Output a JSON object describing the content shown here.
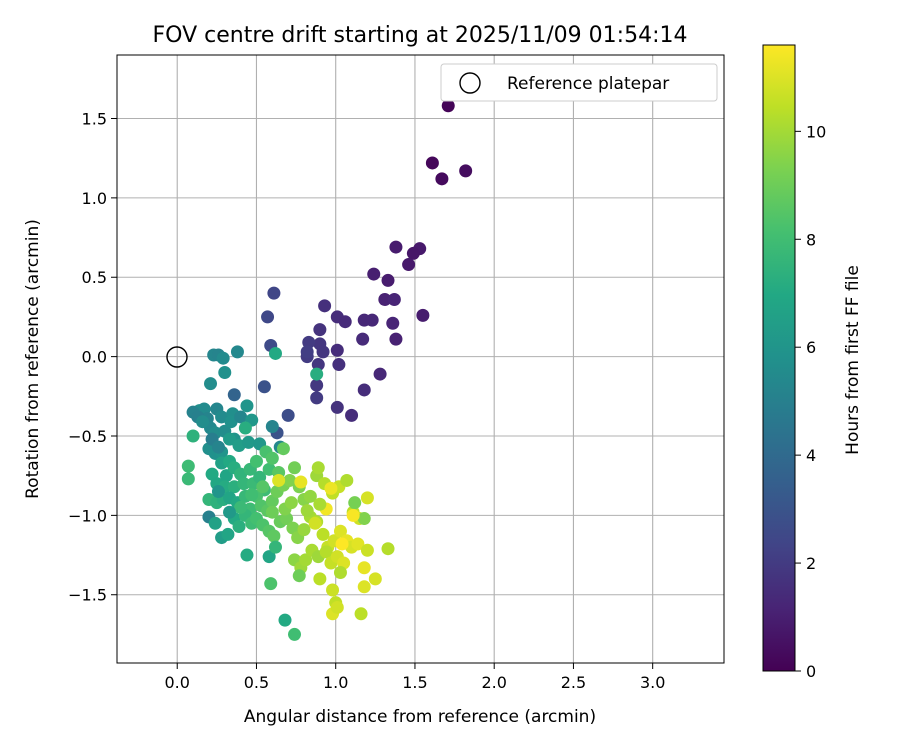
{
  "chart_data": {
    "type": "scatter",
    "title": "FOV centre drift starting at 2025/11/09 01:54:14",
    "xlabel": "Angular distance from reference (arcmin)",
    "ylabel": "Rotation from reference (arcmin)",
    "xlim": [
      -0.38,
      3.45
    ],
    "ylim": [
      -1.93,
      1.9
    ],
    "xticks": [
      0.0,
      0.5,
      1.0,
      1.5,
      2.0,
      2.5,
      3.0
    ],
    "xtick_labels": [
      "0.0",
      "0.5",
      "1.0",
      "1.5",
      "2.0",
      "2.5",
      "3.0"
    ],
    "yticks": [
      -1.5,
      -1.0,
      -0.5,
      0.0,
      0.5,
      1.0,
      1.5
    ],
    "ytick_labels": [
      "−1.5",
      "−1.0",
      "−0.5",
      "0.0",
      "0.5",
      "1.0",
      "1.5"
    ],
    "grid": true,
    "legend": {
      "placement": "top-right",
      "entries": [
        "Reference platepar"
      ]
    },
    "reference_point": [
      0.0,
      0.0
    ],
    "colorbar": {
      "label": "Hours from first FF file",
      "colormap": "viridis",
      "range": [
        0,
        11.6
      ],
      "ticks": [
        0,
        2,
        4,
        6,
        8,
        10
      ],
      "tick_labels": [
        "0",
        "2",
        "4",
        "6",
        "8",
        "10"
      ]
    },
    "points": [
      [
        1.71,
        1.58,
        0.1
      ],
      [
        1.61,
        1.22,
        0.2
      ],
      [
        1.67,
        1.12,
        0.3
      ],
      [
        1.82,
        1.17,
        0.4
      ],
      [
        1.38,
        0.69,
        0.9
      ],
      [
        1.53,
        0.68,
        0.8
      ],
      [
        1.49,
        0.65,
        0.7
      ],
      [
        1.46,
        0.58,
        0.8
      ],
      [
        1.24,
        0.52,
        1.0
      ],
      [
        1.33,
        0.48,
        0.9
      ],
      [
        1.31,
        0.36,
        1.1
      ],
      [
        1.37,
        0.36,
        1.2
      ],
      [
        1.55,
        0.26,
        0.9
      ],
      [
        1.36,
        0.21,
        1.2
      ],
      [
        1.18,
        0.23,
        1.3
      ],
      [
        1.23,
        0.23,
        1.3
      ],
      [
        1.01,
        0.25,
        1.5
      ],
      [
        1.06,
        0.22,
        1.4
      ],
      [
        0.93,
        0.32,
        1.6
      ],
      [
        1.38,
        0.11,
        1.1
      ],
      [
        1.17,
        0.11,
        1.4
      ],
      [
        0.9,
        0.17,
        1.7
      ],
      [
        0.9,
        0.08,
        1.8
      ],
      [
        0.83,
        0.09,
        2.0
      ],
      [
        0.82,
        0.0,
        2.0
      ],
      [
        0.92,
        0.03,
        1.8
      ],
      [
        1.01,
        0.04,
        1.5
      ],
      [
        0.82,
        0.03,
        2.1
      ],
      [
        0.89,
        -0.05,
        1.8
      ],
      [
        1.02,
        -0.05,
        1.6
      ],
      [
        1.28,
        -0.11,
        1.3
      ],
      [
        1.18,
        -0.21,
        1.5
      ],
      [
        0.88,
        -0.18,
        1.9
      ],
      [
        0.88,
        -0.26,
        2.0
      ],
      [
        1.01,
        -0.32,
        1.7
      ],
      [
        1.1,
        -0.37,
        1.5
      ],
      [
        0.61,
        0.4,
        2.4
      ],
      [
        0.57,
        0.25,
        2.5
      ],
      [
        0.59,
        0.07,
        2.6
      ],
      [
        0.55,
        -0.19,
        2.9
      ],
      [
        0.7,
        -0.37,
        2.7
      ],
      [
        0.63,
        -0.48,
        2.9
      ],
      [
        0.36,
        -0.24,
        3.7
      ],
      [
        0.88,
        -0.11,
        7.2
      ],
      [
        0.62,
        0.02,
        7.0
      ],
      [
        0.23,
        0.01,
        5.3
      ],
      [
        0.26,
        0.01,
        5.2
      ],
      [
        0.29,
        -0.01,
        5.5
      ],
      [
        0.38,
        0.03,
        5.4
      ],
      [
        0.3,
        -0.1,
        5.8
      ],
      [
        0.21,
        -0.17,
        5.6
      ],
      [
        0.14,
        -0.34,
        5.8
      ],
      [
        0.17,
        -0.33,
        5.5
      ],
      [
        0.19,
        -0.39,
        5.2
      ],
      [
        0.25,
        -0.33,
        5.3
      ],
      [
        0.28,
        -0.38,
        5.5
      ],
      [
        0.35,
        -0.36,
        5.7
      ],
      [
        0.21,
        -0.45,
        5.4
      ],
      [
        0.24,
        -0.48,
        5.6
      ],
      [
        0.3,
        -0.47,
        5.6
      ],
      [
        0.34,
        -0.41,
        5.8
      ],
      [
        0.4,
        -0.38,
        5.3
      ],
      [
        0.44,
        -0.31,
        6.0
      ],
      [
        0.47,
        -0.4,
        6.1
      ],
      [
        0.36,
        -0.52,
        5.9
      ],
      [
        0.2,
        -0.58,
        5.7
      ],
      [
        0.24,
        -0.61,
        5.8
      ],
      [
        0.28,
        -0.6,
        6.0
      ],
      [
        0.33,
        -0.52,
        6.3
      ],
      [
        0.39,
        -0.56,
        6.4
      ],
      [
        0.43,
        -0.45,
        7.2
      ],
      [
        0.45,
        -0.54,
        6.2
      ],
      [
        0.52,
        -0.55,
        6.1
      ],
      [
        0.1,
        -0.35,
        5.1
      ],
      [
        0.13,
        -0.38,
        5.0
      ],
      [
        0.22,
        -0.52,
        4.9
      ],
      [
        0.26,
        -0.57,
        5.2
      ],
      [
        0.16,
        -0.41,
        5.6
      ],
      [
        0.6,
        -0.44,
        5.2
      ],
      [
        0.65,
        -0.57,
        5.4
      ],
      [
        0.1,
        -0.5,
        7.4
      ],
      [
        0.28,
        -0.67,
        6.6
      ],
      [
        0.31,
        -0.75,
        6.8
      ],
      [
        0.33,
        -0.66,
        7.0
      ],
      [
        0.36,
        -0.7,
        7.2
      ],
      [
        0.22,
        -0.74,
        7.0
      ],
      [
        0.25,
        -0.8,
        6.9
      ],
      [
        0.3,
        -0.82,
        7.1
      ],
      [
        0.36,
        -0.82,
        7.3
      ],
      [
        0.4,
        -0.74,
        7.5
      ],
      [
        0.42,
        -0.8,
        7.6
      ],
      [
        0.46,
        -0.71,
        7.7
      ],
      [
        0.48,
        -0.8,
        7.8
      ],
      [
        0.52,
        -0.76,
        7.6
      ],
      [
        0.55,
        -0.84,
        7.9
      ],
      [
        0.58,
        -0.71,
        8.0
      ],
      [
        0.5,
        -0.66,
        8.1
      ],
      [
        0.56,
        -0.6,
        8.2
      ],
      [
        0.6,
        -0.64,
        8.4
      ],
      [
        0.64,
        -0.73,
        8.6
      ],
      [
        0.67,
        -0.58,
        8.8
      ],
      [
        0.07,
        -0.69,
        7.9
      ],
      [
        0.07,
        -0.77,
        7.8
      ],
      [
        0.2,
        -0.9,
        7.6
      ],
      [
        0.25,
        -0.92,
        7.4
      ],
      [
        0.29,
        -0.9,
        7.2
      ],
      [
        0.33,
        -0.89,
        6.8
      ],
      [
        0.38,
        -0.92,
        7.0
      ],
      [
        0.43,
        -0.88,
        7.7
      ],
      [
        0.46,
        -0.96,
        7.9
      ],
      [
        0.5,
        -0.88,
        8.2
      ],
      [
        0.53,
        -0.94,
        8.4
      ],
      [
        0.57,
        -0.97,
        8.6
      ],
      [
        0.6,
        -0.91,
        8.8
      ],
      [
        0.63,
        -0.85,
        9.0
      ],
      [
        0.67,
        -0.81,
        9.2
      ],
      [
        0.71,
        -0.78,
        9.4
      ],
      [
        0.74,
        -0.7,
        9.1
      ],
      [
        0.77,
        -0.82,
        9.3
      ],
      [
        0.8,
        -0.9,
        9.5
      ],
      [
        0.84,
        -0.88,
        9.7
      ],
      [
        0.88,
        -0.75,
        9.9
      ],
      [
        0.89,
        -0.7,
        10.1
      ],
      [
        0.93,
        -0.8,
        10.3
      ],
      [
        0.98,
        -0.86,
        10.5
      ],
      [
        1.02,
        -0.82,
        10.6
      ],
      [
        1.07,
        -0.78,
        10.2
      ],
      [
        1.11,
        -0.98,
        10.4
      ],
      [
        1.15,
        -1.02,
        10.7
      ],
      [
        1.2,
        -0.89,
        10.9
      ],
      [
        1.12,
        -0.92,
        9.2
      ],
      [
        1.18,
        -1.02,
        9.4
      ],
      [
        0.2,
        -1.01,
        5.0
      ],
      [
        0.24,
        -1.05,
        6.6
      ],
      [
        0.28,
        -1.14,
        6.4
      ],
      [
        0.32,
        -1.12,
        6.8
      ],
      [
        0.36,
        -1.02,
        7.0
      ],
      [
        0.39,
        -1.07,
        7.3
      ],
      [
        0.43,
        -1.0,
        7.6
      ],
      [
        0.47,
        -1.05,
        7.9
      ],
      [
        0.5,
        -1.02,
        8.1
      ],
      [
        0.54,
        -1.06,
        8.3
      ],
      [
        0.58,
        -1.1,
        8.5
      ],
      [
        0.61,
        -1.13,
        8.7
      ],
      [
        0.65,
        -1.04,
        8.9
      ],
      [
        0.69,
        -1.02,
        9.1
      ],
      [
        0.73,
        -1.08,
        9.3
      ],
      [
        0.76,
        -1.14,
        9.5
      ],
      [
        0.8,
        -1.09,
        9.8
      ],
      [
        0.84,
        -1.01,
        10.0
      ],
      [
        0.88,
        -1.04,
        10.2
      ],
      [
        0.92,
        -1.12,
        10.4
      ],
      [
        0.95,
        -1.2,
        10.6
      ],
      [
        0.99,
        -1.16,
        10.8
      ],
      [
        1.03,
        -1.1,
        11.0
      ],
      [
        1.07,
        -1.16,
        11.2
      ],
      [
        1.1,
        -1.2,
        10.9
      ],
      [
        1.14,
        -1.18,
        11.1
      ],
      [
        1.2,
        -1.22,
        10.7
      ],
      [
        1.33,
        -1.21,
        10.3
      ],
      [
        0.58,
        -1.26,
        6.8
      ],
      [
        0.62,
        -1.2,
        7.6
      ],
      [
        0.44,
        -1.25,
        7.1
      ],
      [
        0.74,
        -1.28,
        9.6
      ],
      [
        0.78,
        -1.33,
        9.9
      ],
      [
        0.81,
        -1.28,
        10.0
      ],
      [
        0.85,
        -1.22,
        10.1
      ],
      [
        0.89,
        -1.26,
        9.9
      ],
      [
        0.94,
        -1.23,
        10.3
      ],
      [
        0.97,
        -1.3,
        10.6
      ],
      [
        1.01,
        -1.26,
        10.8
      ],
      [
        1.05,
        -1.3,
        11.0
      ],
      [
        1.18,
        -1.33,
        11.2
      ],
      [
        1.25,
        -1.4,
        10.9
      ],
      [
        0.59,
        -1.43,
        8.3
      ],
      [
        0.77,
        -1.38,
        9.0
      ],
      [
        0.9,
        -1.4,
        10.4
      ],
      [
        0.98,
        -1.47,
        10.7
      ],
      [
        1.03,
        -1.36,
        10.2
      ],
      [
        1.18,
        -1.45,
        11.0
      ],
      [
        0.68,
        -1.66,
        7.0
      ],
      [
        0.74,
        -1.75,
        8.0
      ],
      [
        0.98,
        -1.62,
        11.0
      ],
      [
        1.0,
        -1.55,
        10.5
      ],
      [
        1.01,
        -1.58,
        10.8
      ],
      [
        1.16,
        -1.62,
        10.4
      ],
      [
        0.87,
        -1.05,
        10.8
      ],
      [
        0.94,
        -0.96,
        11.4
      ],
      [
        1.04,
        -1.18,
        11.6
      ],
      [
        1.11,
        -1.0,
        11.5
      ],
      [
        0.97,
        -0.83,
        11.3
      ],
      [
        0.78,
        -0.79,
        11.2
      ],
      [
        0.64,
        -0.78,
        11.0
      ],
      [
        0.54,
        -0.82,
        8.5
      ],
      [
        0.47,
        -0.87,
        8.0
      ],
      [
        0.4,
        -0.95,
        7.8
      ],
      [
        0.33,
        -0.98,
        6.2
      ],
      [
        0.26,
        -0.85,
        6.0
      ],
      [
        0.6,
        -0.98,
        9.0
      ],
      [
        0.68,
        -0.96,
        9.4
      ],
      [
        0.72,
        -0.92,
        9.6
      ],
      [
        0.82,
        -0.97,
        9.9
      ],
      [
        0.9,
        -0.93,
        10.1
      ]
    ]
  }
}
